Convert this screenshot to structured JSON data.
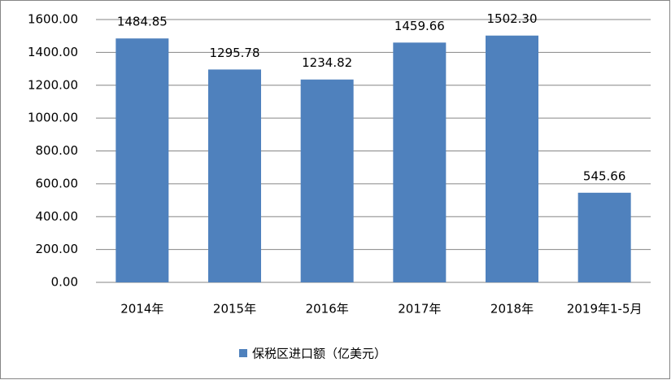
{
  "chart_data": {
    "type": "bar",
    "categories": [
      "2014年",
      "2015年",
      "2016年",
      "2017年",
      "2018年",
      "2019年1-5月"
    ],
    "series": [
      {
        "name": "保税区进口额（亿美元）",
        "color": "#4f81bd",
        "values": [
          1484.85,
          1295.78,
          1234.82,
          1459.66,
          1502.3,
          545.66
        ],
        "value_labels": [
          "1484.85",
          "1295.78",
          "1234.82",
          "1459.66",
          "1502.30",
          "545.66"
        ]
      }
    ],
    "ylim": [
      0,
      1600
    ],
    "yticks": [
      {
        "value": 0,
        "label": "0.00"
      },
      {
        "value": 200,
        "label": "200.00"
      },
      {
        "value": 400,
        "label": "400.00"
      },
      {
        "value": 600,
        "label": "600.00"
      },
      {
        "value": 800,
        "label": "800.00"
      },
      {
        "value": 1000,
        "label": "1000.00"
      },
      {
        "value": 1200,
        "label": "1200.00"
      },
      {
        "value": 1400,
        "label": "1400.00"
      },
      {
        "value": 1600,
        "label": "1600.00"
      }
    ],
    "grid": true,
    "legend": "bottom"
  }
}
